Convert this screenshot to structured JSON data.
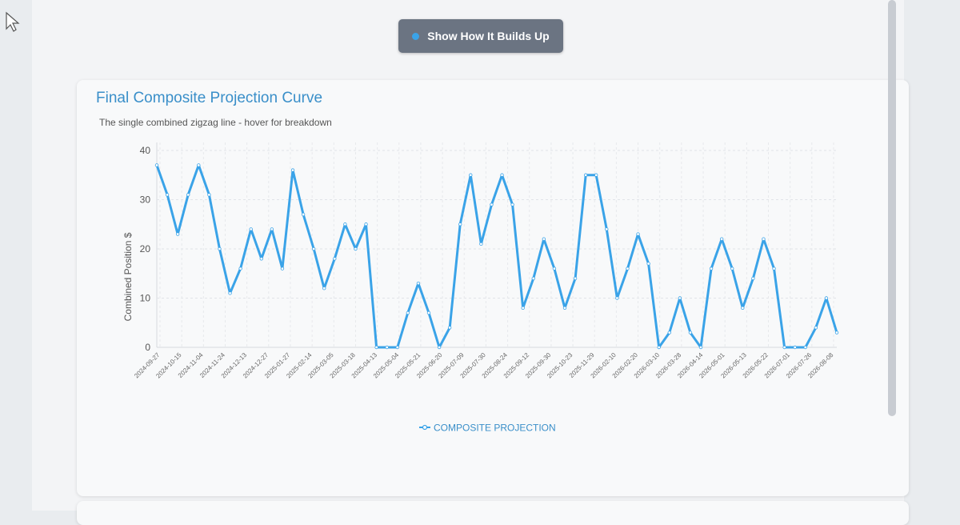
{
  "button": {
    "label": "Show How It Builds Up"
  },
  "card": {
    "title": "Final Composite Projection Curve",
    "subtitle": "The single combined zigzag line - hover for breakdown"
  },
  "colors": {
    "line": "#3aa3e8",
    "button_bg": "#6b7482",
    "title": "#3a8fc9"
  },
  "chart_data": {
    "type": "line",
    "title": "Final Composite Projection Curve",
    "ylabel": "Combined Position $",
    "xlabel": "",
    "ylim": [
      0,
      40
    ],
    "yticks": [
      0,
      10,
      20,
      30,
      40
    ],
    "grid": true,
    "legend": "bottom-center",
    "x_tick_labels": [
      "2024-09-27",
      "2024-10-15",
      "2024-11-04",
      "2024-11-24",
      "2024-12-13",
      "2024-12-27",
      "2025-01-27",
      "2025-02-14",
      "2025-03-05",
      "2025-03-18",
      "2025-04-13",
      "2025-05-04",
      "2025-05-21",
      "2025-06-20",
      "2025-07-09",
      "2025-07-30",
      "2025-08-24",
      "2025-09-12",
      "2025-09-30",
      "2025-10-23",
      "2025-11-29",
      "2026-02-10",
      "2026-02-20",
      "2026-03-10",
      "2026-03-28",
      "2026-04-14",
      "2026-05-01",
      "2026-05-13",
      "2026-05-22",
      "2026-07-01",
      "2026-07-26",
      "2026-08-08"
    ],
    "series": [
      {
        "name": "COMPOSITE PROJECTION",
        "values": [
          37,
          31,
          23,
          31,
          37,
          31,
          20,
          11,
          16,
          24,
          18,
          24,
          16,
          36,
          27,
          20,
          12,
          18,
          25,
          20,
          25,
          0,
          0,
          0,
          7,
          13,
          7,
          0,
          4,
          25,
          35,
          21,
          29,
          35,
          29,
          8,
          14,
          22,
          16,
          8,
          14,
          35,
          35,
          24,
          10,
          16,
          23,
          17,
          0,
          3,
          10,
          3,
          0,
          16,
          22,
          16,
          8,
          14,
          22,
          16,
          0,
          0,
          0,
          4,
          10,
          3
        ]
      }
    ]
  }
}
